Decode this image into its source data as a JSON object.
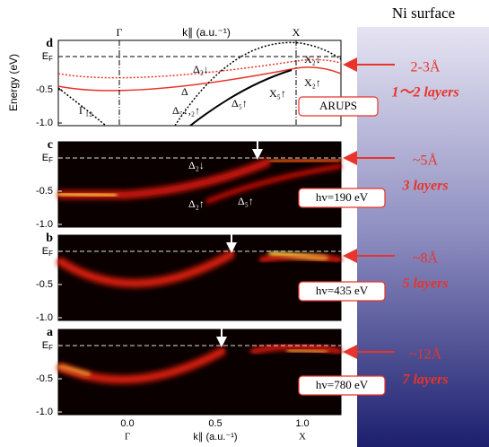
{
  "header": {
    "title": "Ni surface"
  },
  "axes": {
    "y_label": "Energy (eV)",
    "top_labels": [
      "Γ",
      "k∥ (a.u.⁻¹)",
      "X"
    ],
    "bottom_ticks": [
      "0.0",
      "0.5",
      "1.0"
    ],
    "bottom_labels": [
      "Γ",
      "k∥ (a.u.⁻¹)",
      "X"
    ]
  },
  "panels": [
    {
      "label": "d",
      "yticks": [
        {
          "main": "E",
          "sub": "F"
        },
        "-0.5",
        "-1.0"
      ],
      "box": "ARUPS",
      "bands": [
        "Γ₁₂",
        "Δ₂↓",
        "Δ",
        "Δ₅↓,₂↑",
        "Δ₅↑",
        "X₂↓",
        "X₂↑",
        "X₅↑"
      ]
    },
    {
      "label": "c",
      "yticks": [
        {
          "main": "E",
          "sub": "F"
        },
        "-0.5",
        "-1.0"
      ],
      "box": "hv=190 eV",
      "bands": [
        "Δ₂↓",
        "Δ₂↑",
        "Δ₅↑"
      ]
    },
    {
      "label": "b",
      "yticks": [
        {
          "main": "E",
          "sub": "F"
        },
        "-0.5",
        "-1.0"
      ],
      "box": "hv=435 eV",
      "bands": []
    },
    {
      "label": "a",
      "yticks": [
        {
          "main": "E",
          "sub": "F"
        },
        "-0.5",
        "-1.0"
      ],
      "box": "hv=780 eV",
      "bands": []
    }
  ],
  "annotations": [
    {
      "depth": "2-3Å",
      "layers": "1～2 layers"
    },
    {
      "depth": "~5Å",
      "layers": "3 layers"
    },
    {
      "depth": "~8Å",
      "layers": "5 layers"
    },
    {
      "depth": "~12Å",
      "layers": "7 layers"
    }
  ]
}
